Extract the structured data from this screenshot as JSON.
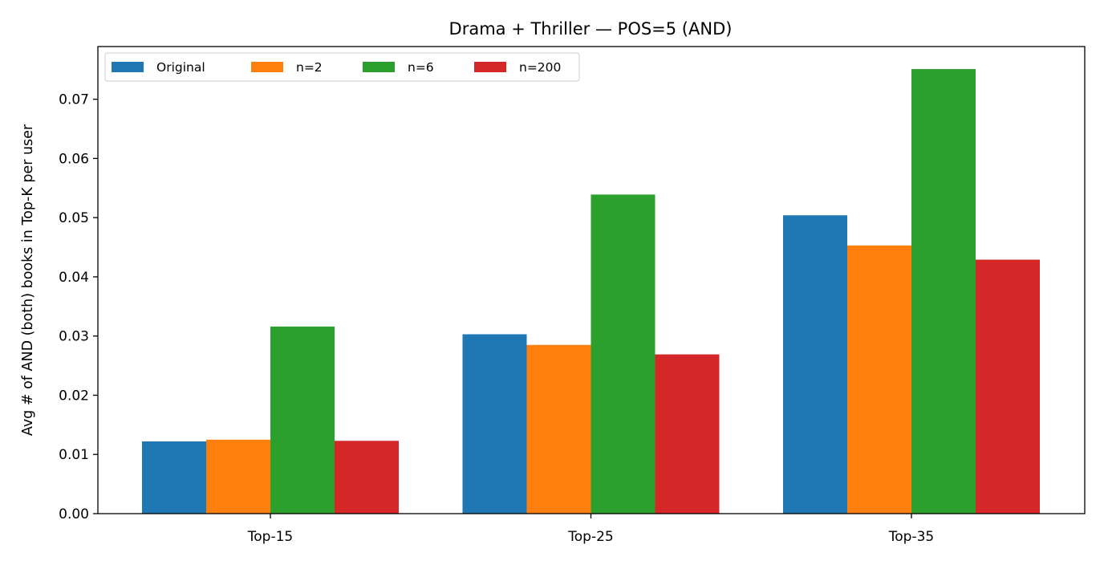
{
  "chart_data": {
    "type": "bar",
    "title": "Drama + Thriller — POS=5 (AND)",
    "xlabel": "",
    "ylabel": "Avg # of AND (both) books in Top-K per user",
    "categories": [
      "Top-15",
      "Top-25",
      "Top-35"
    ],
    "series": [
      {
        "name": "Original",
        "color": "#1f77b4",
        "values": [
          0.0122,
          0.0303,
          0.0504
        ]
      },
      {
        "name": "n=2",
        "color": "#ff7f0e",
        "values": [
          0.0125,
          0.0285,
          0.0453
        ]
      },
      {
        "name": "n=6",
        "color": "#2ca02c",
        "values": [
          0.0316,
          0.0539,
          0.0751
        ]
      },
      {
        "name": "n=200",
        "color": "#d62728",
        "values": [
          0.0123,
          0.0269,
          0.0429
        ]
      }
    ],
    "ylim": [
      0,
      0.0789
    ],
    "yticks": [
      0.0,
      0.01,
      0.02,
      0.03,
      0.04,
      0.05,
      0.06,
      0.07
    ],
    "ytick_labels": [
      "0.00",
      "0.01",
      "0.02",
      "0.03",
      "0.04",
      "0.05",
      "0.06",
      "0.07"
    ],
    "grid": false,
    "legend": {
      "position": "top-left",
      "columns": 4
    }
  }
}
